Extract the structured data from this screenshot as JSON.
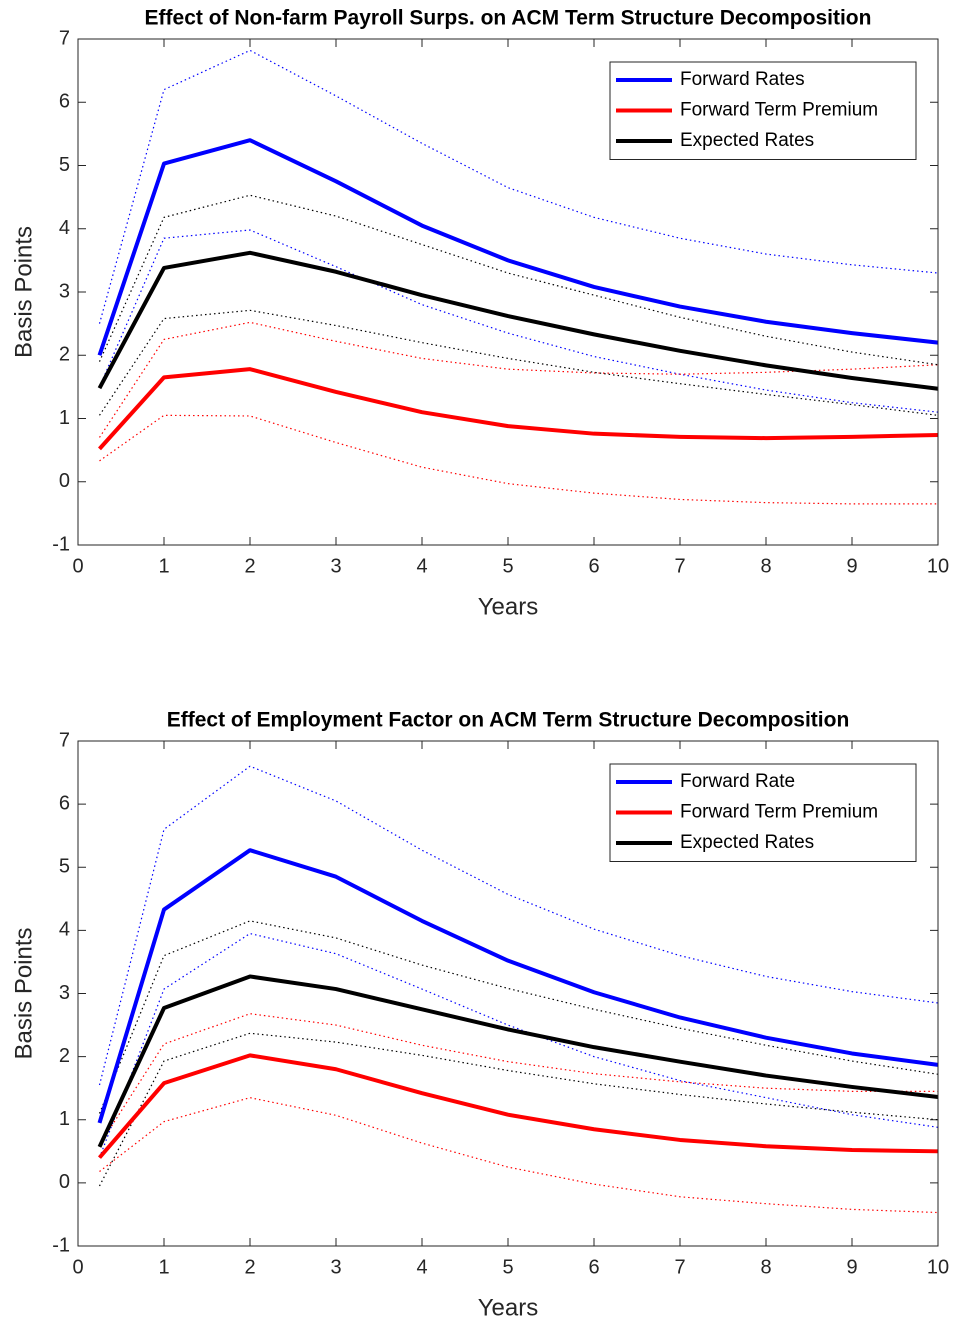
{
  "chart_data": [
    {
      "type": "line",
      "title": "Effect of Non-farm Payroll Surps. on ACM Term Structure Decomposition",
      "xlabel": "Years",
      "ylabel": "Basis Points",
      "x": [
        0.25,
        1,
        2,
        3,
        4,
        5,
        6,
        7,
        8,
        9,
        10
      ],
      "xlim": [
        0,
        10
      ],
      "xticks": [
        0,
        1,
        2,
        3,
        4,
        5,
        6,
        7,
        8,
        9,
        10
      ],
      "ylim": [
        -1,
        7
      ],
      "yticks": [
        -1,
        0,
        1,
        2,
        3,
        4,
        5,
        6,
        7
      ],
      "legend": "upper right",
      "series": [
        {
          "name": "Forward Rates",
          "color": "#0000ff",
          "values": [
            2.0,
            5.03,
            5.4,
            4.75,
            4.05,
            3.5,
            3.08,
            2.77,
            2.53,
            2.35,
            2.2
          ],
          "upper": [
            2.5,
            6.2,
            6.82,
            6.1,
            5.35,
            4.65,
            4.18,
            3.85,
            3.6,
            3.43,
            3.3
          ],
          "lower": [
            1.5,
            3.85,
            3.98,
            3.4,
            2.8,
            2.35,
            1.98,
            1.7,
            1.45,
            1.25,
            1.1
          ]
        },
        {
          "name": "Forward Term Premium",
          "color": "#ff0000",
          "values": [
            0.52,
            1.65,
            1.78,
            1.42,
            1.1,
            0.88,
            0.76,
            0.71,
            0.69,
            0.71,
            0.74
          ],
          "upper": [
            0.7,
            2.25,
            2.52,
            2.22,
            1.95,
            1.78,
            1.72,
            1.7,
            1.73,
            1.78,
            1.85
          ],
          "lower": [
            0.33,
            1.05,
            1.04,
            0.62,
            0.23,
            -0.03,
            -0.18,
            -0.28,
            -0.33,
            -0.35,
            -0.35
          ]
        },
        {
          "name": "Expected Rates",
          "color": "#000000",
          "values": [
            1.48,
            3.38,
            3.62,
            3.32,
            2.95,
            2.62,
            2.33,
            2.07,
            1.84,
            1.64,
            1.47
          ],
          "upper": [
            1.9,
            4.18,
            4.53,
            4.2,
            3.75,
            3.3,
            2.95,
            2.6,
            2.3,
            2.05,
            1.85
          ],
          "lower": [
            1.05,
            2.58,
            2.71,
            2.47,
            2.2,
            1.95,
            1.73,
            1.55,
            1.38,
            1.22,
            1.05
          ]
        }
      ]
    },
    {
      "type": "line",
      "title": "Effect of Employment Factor on ACM Term Structure Decomposition",
      "xlabel": "Years",
      "ylabel": "Basis Points",
      "x": [
        0.25,
        1,
        2,
        3,
        4,
        5,
        6,
        7,
        8,
        9,
        10
      ],
      "xlim": [
        0,
        10
      ],
      "xticks": [
        0,
        1,
        2,
        3,
        4,
        5,
        6,
        7,
        8,
        9,
        10
      ],
      "ylim": [
        -1,
        7
      ],
      "yticks": [
        -1,
        0,
        1,
        2,
        3,
        4,
        5,
        6,
        7
      ],
      "legend": "upper right",
      "series": [
        {
          "name": "Forward Rate",
          "color": "#0000ff",
          "values": [
            0.95,
            4.33,
            5.27,
            4.85,
            4.15,
            3.52,
            3.02,
            2.62,
            2.3,
            2.05,
            1.87
          ],
          "upper": [
            1.55,
            5.6,
            6.6,
            6.05,
            5.27,
            4.57,
            4.02,
            3.6,
            3.27,
            3.03,
            2.85
          ],
          "lower": [
            0.4,
            3.07,
            3.95,
            3.63,
            3.07,
            2.5,
            2.0,
            1.62,
            1.35,
            1.08,
            0.88
          ]
        },
        {
          "name": "Forward Term Premium",
          "color": "#ff0000",
          "values": [
            0.4,
            1.58,
            2.02,
            1.8,
            1.42,
            1.08,
            0.85,
            0.68,
            0.58,
            0.52,
            0.5
          ],
          "upper": [
            0.6,
            2.2,
            2.68,
            2.5,
            2.18,
            1.92,
            1.73,
            1.6,
            1.5,
            1.45,
            1.45
          ],
          "lower": [
            0.18,
            0.97,
            1.35,
            1.07,
            0.63,
            0.25,
            -0.02,
            -0.22,
            -0.33,
            -0.42,
            -0.47
          ]
        },
        {
          "name": "Expected Rates",
          "color": "#000000",
          "values": [
            0.57,
            2.77,
            3.27,
            3.07,
            2.75,
            2.43,
            2.15,
            1.92,
            1.7,
            1.52,
            1.36
          ],
          "upper": [
            1.1,
            3.6,
            4.15,
            3.88,
            3.45,
            3.08,
            2.75,
            2.45,
            2.18,
            1.93,
            1.72
          ],
          "lower": [
            -0.05,
            1.93,
            2.37,
            2.23,
            2.02,
            1.78,
            1.57,
            1.4,
            1.25,
            1.12,
            1.0
          ]
        }
      ]
    }
  ]
}
